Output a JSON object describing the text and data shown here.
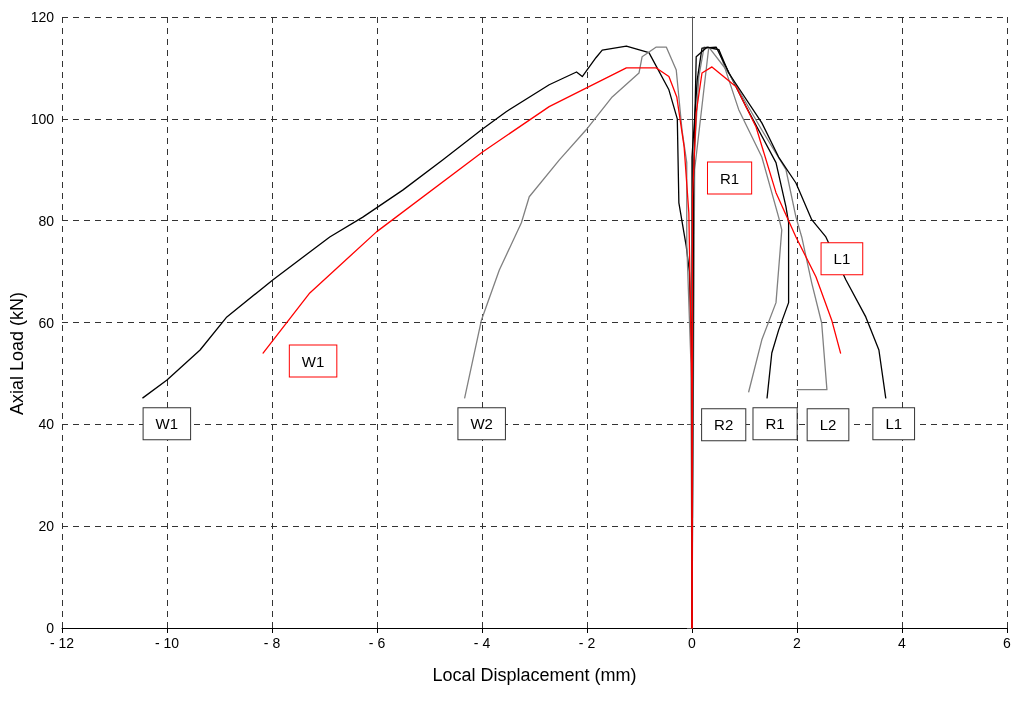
{
  "chart_data": {
    "type": "line",
    "xlabel": "Local Displacement (mm)",
    "ylabel": "Axial Load (kN)",
    "xlim": [
      -12,
      6
    ],
    "xticks": [
      {
        "value": -12,
        "label": "- 12"
      },
      {
        "value": -10,
        "label": "- 10"
      },
      {
        "value": -8,
        "label": "- 8"
      },
      {
        "value": -6,
        "label": "- 6"
      },
      {
        "value": -4,
        "label": "- 4"
      },
      {
        "value": -2,
        "label": "- 2"
      },
      0,
      2,
      4,
      6
    ],
    "ylim": [
      0,
      120
    ],
    "yticks": [
      0,
      20,
      40,
      60,
      80,
      100,
      120
    ],
    "grid": true,
    "marker": "none",
    "line_style": "solid",
    "series": [
      {
        "name": "W1",
        "color": "#000000",
        "x": [
          0,
          0,
          -0.05,
          -0.11,
          -0.25,
          -0.28,
          -0.44,
          -0.82,
          -1.25,
          -1.71,
          -1.83,
          -2.09,
          -2.2,
          -2.72,
          -3.54,
          -3.99,
          -4.75,
          -5.51,
          -6.27,
          -6.9,
          -7.98,
          -8.86,
          -9.37,
          -10,
          -10.46
        ],
        "values": [
          0,
          50,
          70,
          75,
          83.5,
          100,
          105.7,
          113,
          114.3,
          113.5,
          112,
          108.3,
          109.2,
          106.7,
          101.4,
          98,
          91.9,
          86,
          80.7,
          76.8,
          68.4,
          61.1,
          54.6,
          48.7,
          45.2
        ]
      },
      {
        "name": "W2",
        "color": "#808080",
        "x": [
          0,
          -0.02,
          -0.1,
          -0.1,
          -0.19,
          -0.3,
          -0.49,
          -0.68,
          -0.95,
          -1.01,
          -1.52,
          -2.02,
          -2.53,
          -3.1,
          -3.25,
          -3.67,
          -4.01,
          -4.33
        ],
        "values": [
          0,
          52,
          75.6,
          91.4,
          97.8,
          109.6,
          114.1,
          114.1,
          112.2,
          109,
          104.3,
          97.8,
          91.9,
          84.7,
          79.6,
          70.3,
          60.5,
          45.2
        ]
      },
      {
        "name": "R2",
        "color": "#808080",
        "x": [
          0,
          0.04,
          0.13,
          0.23,
          0.51,
          0.89,
          1.33,
          1.65,
          1.71,
          1.6,
          1.33,
          1.08
        ],
        "values": [
          0,
          92,
          108.3,
          114.1,
          113.6,
          101.8,
          92.5,
          80.7,
          78.2,
          63.9,
          56.6,
          46.4
        ]
      },
      {
        "name": "R1",
        "color": "#000000",
        "x": [
          0,
          0,
          0.1,
          0.19,
          0.46,
          0.55,
          1.03,
          1.6,
          1.79,
          1.84,
          1.84,
          1.65,
          1.52,
          1.43
        ],
        "values": [
          0,
          92.5,
          107.7,
          113.9,
          114.1,
          112.2,
          102.4,
          91.4,
          82.7,
          79.6,
          63.9,
          58.5,
          54,
          45.2
        ]
      },
      {
        "name": "L2",
        "color": "#808080",
        "x": [
          0,
          0.05,
          0.32,
          0.7,
          1.33,
          1.79,
          1.98,
          2.09,
          2.28,
          2.47,
          2.57,
          2
        ],
        "values": [
          0,
          90,
          114.1,
          109,
          97.8,
          90,
          80.7,
          76.8,
          67.8,
          59.9,
          46.8,
          46.8
        ]
      },
      {
        "name": "L1",
        "color": "#000000",
        "x": [
          0,
          0.03,
          0.08,
          0.29,
          0.51,
          0.7,
          1.33,
          1.65,
          1.98,
          2.28,
          2.55,
          2.93,
          3.31,
          3.56,
          3.69
        ],
        "values": [
          0,
          88,
          112.2,
          114.1,
          113.6,
          109,
          99.2,
          92.5,
          87.4,
          80.2,
          76.8,
          68.4,
          61.1,
          54.6,
          45.2
        ]
      },
      {
        "name": "W1",
        "color": "#ff0000",
        "x": [
          0,
          0,
          -0.06,
          -0.15,
          -0.29,
          -0.44,
          -0.68,
          -1.25,
          -2.72,
          -3.99,
          -6.01,
          -7.28,
          -8.17
        ],
        "values": [
          0,
          45,
          81.5,
          94.5,
          104.3,
          108.3,
          110,
          110,
          102.4,
          93.5,
          77.8,
          65.8,
          54
        ]
      },
      {
        "name": "R1",
        "color": "#ff0000",
        "x": [
          0,
          0.01,
          0.08,
          0.19,
          0.38,
          0.84,
          1.22,
          1.6,
          1.98,
          2.36,
          2.66,
          2.83
        ],
        "values": [
          0,
          84.7,
          101.2,
          109,
          110.2,
          106.3,
          98.4,
          85.5,
          76.8,
          69,
          60.5,
          54
        ]
      }
    ],
    "annotations": [
      {
        "text": "L1",
        "x": 2.36,
        "y": 69
      }
    ]
  }
}
